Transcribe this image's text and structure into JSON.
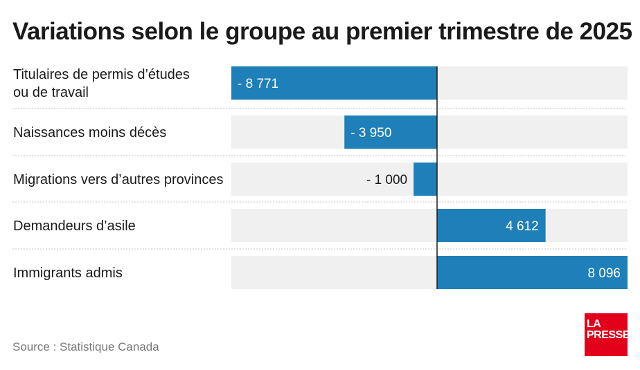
{
  "title": "Variations selon le groupe au premier trimestre de 2025",
  "source": "Source : Statistique Canada",
  "logo": {
    "line1": "LA",
    "line2": "PRESSE"
  },
  "chart_data": {
    "type": "bar",
    "orientation": "horizontal",
    "categories": [
      [
        "Titulaires de permis d’études",
        "ou de travail"
      ],
      [
        "Naissances moins décès"
      ],
      [
        "Migrations vers d’autres provinces"
      ],
      [
        "Demandeurs d’asile"
      ],
      [
        "Immigrants admis"
      ]
    ],
    "values": [
      -8771,
      -3950,
      -1000,
      4612,
      8096
    ],
    "value_labels": [
      "- 8 771",
      "- 3 950",
      "- 1 000",
      "4 612",
      "8 096"
    ],
    "xlim": [
      -8771,
      8096
    ],
    "bar_color": "#1f7fb8",
    "track_color": "#f0f0f0",
    "grid": false,
    "legend": "none"
  }
}
